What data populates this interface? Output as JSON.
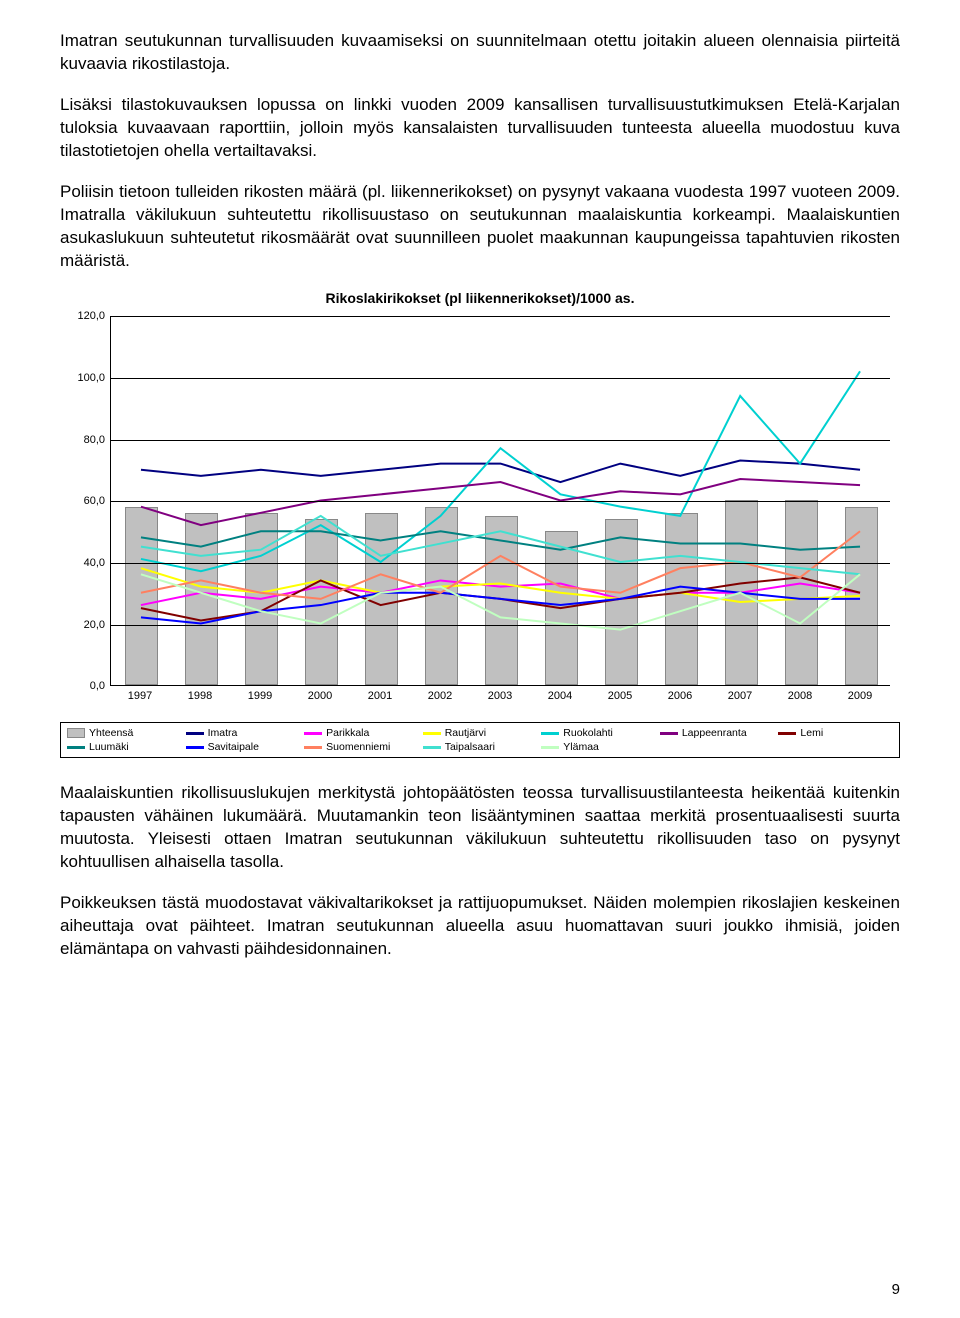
{
  "paragraphs": {
    "p1": "Imatran seutukunnan turvallisuuden kuvaamiseksi on suunnitelmaan otettu joitakin alueen olennaisia piirteitä kuvaavia rikostilastoja.",
    "p2": "Lisäksi tilastokuvauksen lopussa on linkki vuoden 2009 kansallisen turvallisuustutkimuksen Etelä-Karjalan tuloksia kuvaavaan raporttiin, jolloin myös kansalaisten turvallisuuden tunteesta alueella muodostuu kuva tilastotietojen ohella vertailtavaksi.",
    "p3": "Poliisin tietoon tulleiden rikosten määrä (pl. liikennerikokset) on pysynyt vakaana vuodesta 1997 vuoteen 2009. Imatralla väkilukuun suhteutettu rikollisuustaso on seutukunnan maalaiskuntia korkeampi. Maalaiskuntien asukaslukuun suhteutetut rikosmäärät ovat suunnilleen puolet maakunnan kaupungeissa tapahtuvien rikosten määristä.",
    "p4": "Maalaiskuntien rikollisuuslukujen merkitystä johtopäätösten teossa turvallisuustilanteesta heikentää kuitenkin tapausten vähäinen lukumäärä. Muutamankin teon lisääntyminen saattaa merkitä prosentuaalisesti suurta muutosta. Yleisesti ottaen Imatran seutukunnan väkilukuun suhteutettu rikollisuuden taso on pysynyt kohtuullisen alhaisella tasolla.",
    "p5": "Poikkeuksen tästä muodostavat väkivaltarikokset ja rattijuopumukset. Näiden molempien rikoslajien keskeinen aiheuttaja ovat päihteet. Imatran seutukunnan alueella asuu huomattavan suuri joukko ihmisiä, joiden elämäntapa on vahvasti päihdesidonnainen."
  },
  "chart": {
    "title": "Rikoslakirikokset (pl liikennerikokset)/1000 as.",
    "type": "bar+line",
    "ylim": [
      0,
      120
    ],
    "ytick_step": 20,
    "yticks": [
      "0,0",
      "20,0",
      "40,0",
      "60,0",
      "80,0",
      "100,0",
      "120,0"
    ],
    "categories": [
      "1997",
      "1998",
      "1999",
      "2000",
      "2001",
      "2002",
      "2003",
      "2004",
      "2005",
      "2006",
      "2007",
      "2008",
      "2009"
    ],
    "background_color": "#ffffff",
    "grid_color": "#000000",
    "bar_color": "#c0c0c0",
    "bar_border": "#888888",
    "bar_values": [
      58,
      56,
      56,
      54,
      56,
      58,
      55,
      50,
      54,
      56,
      60,
      60,
      58
    ],
    "series": [
      {
        "name": "Imatra",
        "color": "#000080",
        "values": [
          70,
          68,
          70,
          68,
          70,
          72,
          72,
          66,
          72,
          68,
          73,
          72,
          70
        ]
      },
      {
        "name": "Parikkala",
        "color": "#ff00ff",
        "values": [
          26,
          30,
          28,
          32,
          30,
          34,
          32,
          33,
          28,
          30,
          30,
          33,
          30
        ]
      },
      {
        "name": "Rautjärvi",
        "color": "#ffff00",
        "values": [
          38,
          32,
          30,
          34,
          30,
          32,
          33,
          30,
          28,
          30,
          27,
          28,
          29
        ]
      },
      {
        "name": "Ruokolahti",
        "color": "#00d0d0",
        "values": [
          41,
          37,
          42,
          52,
          40,
          55,
          77,
          62,
          58,
          55,
          94,
          72,
          102
        ]
      },
      {
        "name": "Lappeenranta",
        "color": "#800080",
        "values": [
          58,
          52,
          56,
          60,
          62,
          64,
          66,
          60,
          63,
          62,
          67,
          66,
          65
        ]
      },
      {
        "name": "Lemi",
        "color": "#800000",
        "values": [
          25,
          21,
          24,
          34,
          26,
          30,
          28,
          25,
          28,
          30,
          33,
          35,
          30
        ]
      },
      {
        "name": "Luumäki",
        "color": "#008080",
        "values": [
          48,
          45,
          50,
          50,
          47,
          50,
          47,
          44,
          48,
          46,
          46,
          44,
          45
        ]
      },
      {
        "name": "Savitaipale",
        "color": "#0000ff",
        "values": [
          22,
          20,
          24,
          26,
          30,
          30,
          28,
          26,
          28,
          32,
          30,
          28,
          28
        ]
      },
      {
        "name": "Suomenniemi",
        "color": "#ff8060",
        "values": [
          30,
          34,
          30,
          28,
          36,
          30,
          42,
          32,
          30,
          38,
          40,
          35,
          50
        ]
      },
      {
        "name": "Taipalsaari",
        "color": "#40e0d0",
        "values": [
          45,
          42,
          44,
          55,
          42,
          46,
          50,
          45,
          40,
          42,
          40,
          38,
          36
        ]
      },
      {
        "name": "Ylämaa",
        "color": "#c0ffc0",
        "values": [
          36,
          30,
          24,
          20,
          30,
          32,
          22,
          20,
          18,
          24,
          30,
          20,
          36
        ]
      }
    ],
    "legend": [
      {
        "label": "Yhteensä",
        "color": "#c0c0c0",
        "kind": "bar"
      },
      {
        "label": "Imatra",
        "color": "#000080",
        "kind": "line"
      },
      {
        "label": "Parikkala",
        "color": "#ff00ff",
        "kind": "line"
      },
      {
        "label": "Rautjärvi",
        "color": "#ffff00",
        "kind": "line"
      },
      {
        "label": "Ruokolahti",
        "color": "#00d0d0",
        "kind": "line"
      },
      {
        "label": "Lappeenranta",
        "color": "#800080",
        "kind": "line"
      },
      {
        "label": "Lemi",
        "color": "#800000",
        "kind": "line"
      },
      {
        "label": "Luumäki",
        "color": "#008080",
        "kind": "line"
      },
      {
        "label": "Savitaipale",
        "color": "#0000ff",
        "kind": "line"
      },
      {
        "label": "Suomenniemi",
        "color": "#ff8060",
        "kind": "line"
      },
      {
        "label": "Taipalsaari",
        "color": "#40e0d0",
        "kind": "line"
      },
      {
        "label": "Ylämaa",
        "color": "#c0ffc0",
        "kind": "line"
      }
    ]
  },
  "page_number": "9"
}
